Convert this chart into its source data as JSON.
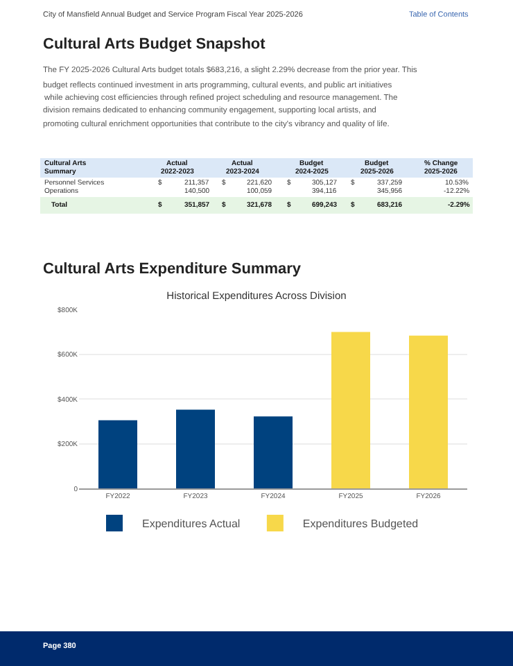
{
  "chart_data": {
    "type": "bar",
    "title": "Historical Expenditures Across Division",
    "categories": [
      "FY2022",
      "FY2023",
      "FY2024",
      "FY2025",
      "FY2026"
    ],
    "series": [
      {
        "name": "Expenditures Actual",
        "color": "#00427f",
        "values": [
          305000,
          352000,
          322000,
          null,
          null
        ]
      },
      {
        "name": "Expenditures Budgeted",
        "color": "#f7d84a",
        "values": [
          null,
          null,
          null,
          699000,
          683000
        ]
      }
    ],
    "ylim": [
      0,
      800000
    ],
    "yticks": [
      {
        "value": 0,
        "label": "0"
      },
      {
        "value": 200000,
        "label": "$200K"
      },
      {
        "value": 400000,
        "label": "$400K"
      },
      {
        "value": 600000,
        "label": "$600K"
      },
      {
        "value": 800000,
        "label": "$800K"
      }
    ],
    "grid": "y",
    "legend": "bottom",
    "annotations": [
      "City of Mansfield Annual Budget and Service Program Fiscal Year 2025-2026",
      "Table of Contents",
      "Cultural Arts Budget Snapshot",
      "The FY 2025-2026 Cultural Arts budget totals $683,216, a slight 2.29% decrease from the prior year. This",
      "budget reflects continued investment in arts programming, cultural events, and public art initiatives",
      "while achieving cost efficiencies through refined project scheduling and resource management. The",
      "division remains dedicated to enhancing community engagement, supporting local artists, and",
      "promoting cultural enrichment opportunities that contribute to the city's vibrancy and quality of life.",
      "Cultural Arts",
      "Actual",
      "Actual",
      "Budget",
      "Budget",
      "% Change",
      "Summary",
      "2022-2023",
      "2023-2024",
      "2024-2025",
      "2025-2026",
      "2025-2026",
      "Personnel Services",
      "$",
      "211,357",
      "$",
      "221,620",
      "$",
      "305,127",
      "$",
      "337,259",
      "10.53%",
      "Operations",
      "140,500",
      "100,059",
      "394,116",
      "345,956",
      "-12.22%",
      "Total",
      "$",
      "351,857",
      "$",
      "321,678",
      "$",
      "699,243",
      "$",
      "683,216",
      "-2.29%",
      "Cultural Arts Expenditure Summary",
      "Page 380"
    ]
  }
}
